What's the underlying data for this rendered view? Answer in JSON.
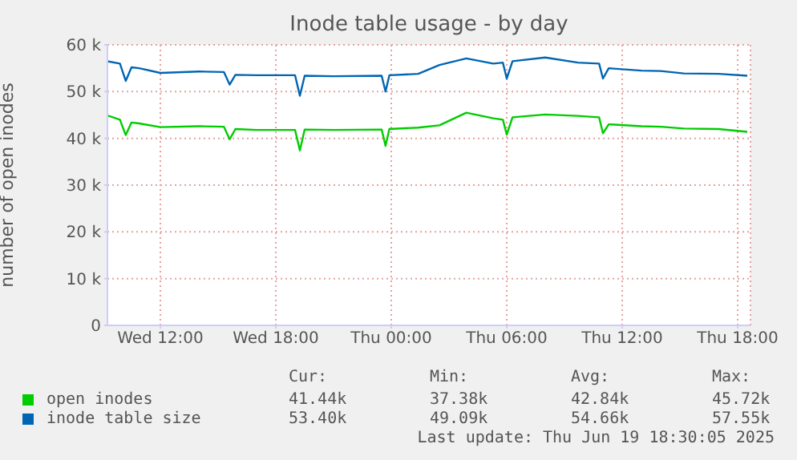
{
  "chart_data": {
    "type": "line",
    "title": "Inode table usage - by day",
    "ylabel": "number of open inodes",
    "x": [
      "2025-06-18T09:15",
      "2025-06-18T09:54",
      "2025-06-18T10:12",
      "2025-06-18T10:30",
      "2025-06-18T10:54",
      "2025-06-18T12:00",
      "2025-06-18T14:00",
      "2025-06-18T15:18",
      "2025-06-18T15:36",
      "2025-06-18T15:54",
      "2025-06-18T17:00",
      "2025-06-18T19:00",
      "2025-06-18T19:15",
      "2025-06-18T19:30",
      "2025-06-18T21:00",
      "2025-06-18T23:30",
      "2025-06-18T23:42",
      "2025-06-18T23:54",
      "2025-06-19T01:24",
      "2025-06-19T02:30",
      "2025-06-19T03:54",
      "2025-06-19T05:18",
      "2025-06-19T05:48",
      "2025-06-19T06:00",
      "2025-06-19T06:18",
      "2025-06-19T08:00",
      "2025-06-19T09:42",
      "2025-06-19T10:48",
      "2025-06-19T11:00",
      "2025-06-19T11:18",
      "2025-06-19T13:00",
      "2025-06-19T14:00",
      "2025-06-19T15:12",
      "2025-06-19T17:00",
      "2025-06-19T18:30"
    ],
    "series": [
      {
        "name": "open inodes",
        "color": "#00cc00",
        "values": [
          44900,
          44000,
          40700,
          43400,
          43200,
          42400,
          42600,
          42500,
          39800,
          42000,
          41800,
          41800,
          37400,
          41900,
          41800,
          41900,
          38400,
          42000,
          42300,
          42800,
          45500,
          44300,
          44000,
          40800,
          44500,
          45100,
          44800,
          44500,
          41100,
          43000,
          42600,
          42500,
          42100,
          42000,
          41400
        ]
      },
      {
        "name": "inode table size",
        "color": "#0066b3",
        "values": [
          56500,
          56000,
          52300,
          55200,
          55000,
          54000,
          54300,
          54200,
          51500,
          53600,
          53500,
          53500,
          49100,
          53400,
          53300,
          53400,
          50000,
          53500,
          53800,
          55700,
          57100,
          56000,
          56200,
          52800,
          56500,
          57300,
          56200,
          56000,
          52800,
          55000,
          54500,
          54400,
          53900,
          53800,
          53400
        ]
      }
    ],
    "xlim": [
      "2025-06-18T09:15",
      "2025-06-19T18:40"
    ],
    "xticks": [
      {
        "value": "2025-06-18T12:00",
        "label": "Wed 12:00"
      },
      {
        "value": "2025-06-18T18:00",
        "label": "Wed 18:00"
      },
      {
        "value": "2025-06-19T00:00",
        "label": "Thu 00:00"
      },
      {
        "value": "2025-06-19T06:00",
        "label": "Thu 06:00"
      },
      {
        "value": "2025-06-19T12:00",
        "label": "Thu 12:00"
      },
      {
        "value": "2025-06-19T18:00",
        "label": "Thu 18:00"
      }
    ],
    "ylim": [
      0,
      60000
    ],
    "yticks": [
      0,
      {
        "value": 10000,
        "label": "10 k"
      },
      {
        "value": 20000,
        "label": "20 k"
      },
      {
        "value": 30000,
        "label": "30 k"
      },
      {
        "value": 40000,
        "label": "40 k"
      },
      {
        "value": 50000,
        "label": "50 k"
      },
      {
        "value": 60000,
        "label": "60 k"
      }
    ],
    "grid": true,
    "legend": "bottom",
    "marker": "none",
    "line_style": "solid",
    "annotations": [
      "Cur:",
      "Min:",
      "Avg:",
      "Max:",
      "41.44k",
      "37.38k",
      "42.84k",
      "45.72k",
      "53.40k",
      "49.09k",
      "54.66k",
      "57.55k",
      "Last update: Thu Jun 19 18:30:05 2025"
    ]
  }
}
